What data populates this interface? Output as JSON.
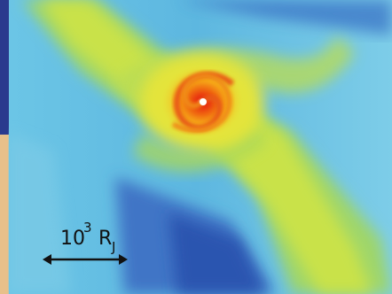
{
  "scale_bar": {
    "base": "10",
    "exponent": "3",
    "unit": "R",
    "subscript": "J"
  }
}
